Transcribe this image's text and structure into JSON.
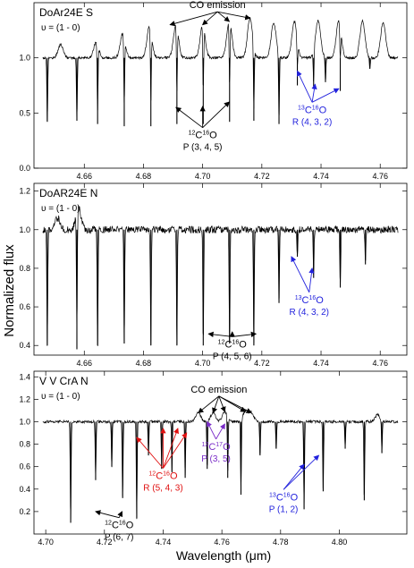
{
  "figure": {
    "ylabel": "Normalized flux",
    "xlabel": "Wavelength (μm)",
    "colors": {
      "blue": "#2222dd",
      "red": "#e01010",
      "purple": "#7a2cc8",
      "line": "#000000"
    }
  },
  "chart_data": [
    {
      "type": "line",
      "title": "DoAr24E S",
      "transition": "υ = (1 - 0)",
      "xlim": [
        4.643,
        4.769
      ],
      "ylim": [
        0.0,
        1.5
      ],
      "xticks": [
        4.66,
        4.68,
        4.7,
        4.72,
        4.74,
        4.76
      ],
      "yticks": [
        0.0,
        0.5,
        1.0
      ],
      "continuum": 1.0,
      "emission_peaks": [
        {
          "x": 4.652,
          "h": 0.12
        },
        {
          "x": 4.664,
          "h": 0.14
        },
        {
          "x": 4.673,
          "h": 0.22
        },
        {
          "x": 4.682,
          "h": 0.28
        },
        {
          "x": 4.691,
          "h": 0.3
        },
        {
          "x": 4.7,
          "h": 0.3
        },
        {
          "x": 4.709,
          "h": 0.34
        },
        {
          "x": 4.716,
          "h": 0.36
        },
        {
          "x": 4.724,
          "h": 0.32
        },
        {
          "x": 4.731,
          "h": 0.33
        },
        {
          "x": 4.739,
          "h": 0.34
        },
        {
          "x": 4.746,
          "h": 0.34
        },
        {
          "x": 4.754,
          "h": 0.33
        },
        {
          "x": 4.761,
          "h": 0.32
        }
      ],
      "absorption_lines": [
        {
          "x": 4.6475,
          "y": 0.42
        },
        {
          "x": 4.6575,
          "y": 0.43
        },
        {
          "x": 4.6645,
          "y": 0.4
        },
        {
          "x": 4.6735,
          "y": 0.38
        },
        {
          "x": 4.6825,
          "y": 0.38
        },
        {
          "x": 4.6913,
          "y": 0.4
        },
        {
          "x": 4.7002,
          "y": 0.4
        },
        {
          "x": 4.7091,
          "y": 0.42
        },
        {
          "x": 4.7173,
          "y": 0.43
        },
        {
          "x": 4.7258,
          "y": 0.4
        },
        {
          "x": 4.732,
          "y": 0.75
        },
        {
          "x": 4.7375,
          "y": 0.72
        },
        {
          "x": 4.7415,
          "y": 0.78
        },
        {
          "x": 4.7465,
          "y": 0.7
        },
        {
          "x": 4.7565,
          "y": 0.9
        }
      ],
      "annotations": [
        {
          "id": "co-emission",
          "text": "CO emission",
          "color": "black",
          "x": 4.705,
          "y": 1.45,
          "arrows": [
            [
              4.689,
              1.3
            ],
            [
              4.7,
              1.3
            ],
            [
              4.709,
              1.33
            ],
            [
              4.716,
              1.36
            ]
          ]
        },
        {
          "id": "12c16o",
          "iso": [
            "12",
            "C",
            "16",
            "O"
          ],
          "sub": "P (3, 4, 5)",
          "color": "black",
          "x": 4.7,
          "y": 0.27,
          "arrows": [
            [
              4.691,
              0.55
            ],
            [
              4.7,
              0.56
            ],
            [
              4.709,
              0.6
            ]
          ]
        },
        {
          "id": "13c16o",
          "iso": [
            "13",
            "C",
            "16",
            "O"
          ],
          "sub": "R (4, 3, 2)",
          "color": "blue",
          "x": 4.737,
          "y": 0.5,
          "arrows": [
            [
              4.732,
              0.88
            ],
            [
              4.738,
              0.76
            ],
            [
              4.746,
              0.72
            ]
          ]
        }
      ]
    },
    {
      "type": "line",
      "title": "DoAR24E N",
      "transition": "υ = (1 - 0)",
      "xlim": [
        4.643,
        4.769
      ],
      "ylim": [
        0.35,
        1.24
      ],
      "xticks": [
        4.66,
        4.68,
        4.7,
        4.72,
        4.74,
        4.76
      ],
      "yticks": [
        0.4,
        0.6,
        0.8,
        1.0,
        1.2
      ],
      "continuum": 1.0,
      "emission_peaks": [
        {
          "x": 4.658,
          "h": 0.12
        },
        {
          "x": 4.651,
          "h": 0.06
        }
      ],
      "absorption_lines": [
        {
          "x": 4.6475,
          "y": 0.4
        },
        {
          "x": 4.6575,
          "y": 0.38
        },
        {
          "x": 4.6645,
          "y": 0.4
        },
        {
          "x": 4.6735,
          "y": 0.41
        },
        {
          "x": 4.6825,
          "y": 0.4
        },
        {
          "x": 4.6913,
          "y": 0.4
        },
        {
          "x": 4.7002,
          "y": 0.4
        },
        {
          "x": 4.7091,
          "y": 0.41
        },
        {
          "x": 4.7173,
          "y": 0.4
        },
        {
          "x": 4.7258,
          "y": 0.62
        },
        {
          "x": 4.732,
          "y": 0.86
        },
        {
          "x": 4.7375,
          "y": 0.75
        },
        {
          "x": 4.7465,
          "y": 0.7
        },
        {
          "x": 4.755,
          "y": 0.82
        }
      ],
      "annotations": [
        {
          "id": "13c16o-n",
          "iso": [
            "13",
            "C",
            "16",
            "O"
          ],
          "sub": "R (4, 3, 2)",
          "color": "blue",
          "x": 4.736,
          "y": 0.62,
          "arrows": [
            [
              4.73,
              0.86
            ],
            [
              4.737,
              0.8
            ]
          ]
        },
        {
          "id": "12c16o-n",
          "iso": [
            "12",
            "C",
            "16",
            "O"
          ],
          "sub": "P (4, 5, 6)",
          "color": "black",
          "x": 4.71,
          "y": 0.39,
          "arrows": [
            [
              4.702,
              0.46
            ],
            [
              4.71,
              0.47
            ],
            [
              4.718,
              0.46
            ]
          ]
        }
      ]
    },
    {
      "type": "line",
      "title": "V V CrA N",
      "transition": "υ = (1 - 0)",
      "xlim": [
        4.696,
        4.823
      ],
      "ylim": [
        0.0,
        1.45
      ],
      "xticks": [
        4.7,
        4.72,
        4.74,
        4.76,
        4.78,
        4.8
      ],
      "yticks": [
        0.2,
        0.4,
        0.6,
        0.8,
        1.0,
        1.2,
        1.4
      ],
      "continuum": 1.0,
      "emission_peaks": [
        {
          "x": 4.752,
          "h": 0.08
        },
        {
          "x": 4.757,
          "h": 0.08
        },
        {
          "x": 4.761,
          "h": 0.09
        },
        {
          "x": 4.768,
          "h": 0.09
        },
        {
          "x": 4.77,
          "h": 0.08
        },
        {
          "x": 4.813,
          "h": 0.06
        }
      ],
      "absorption_lines": [
        {
          "x": 4.7085,
          "y": 0.1
        },
        {
          "x": 4.717,
          "y": 0.48
        },
        {
          "x": 4.7225,
          "y": 0.6
        },
        {
          "x": 4.7262,
          "y": 0.32
        },
        {
          "x": 4.731,
          "y": 0.14
        },
        {
          "x": 4.735,
          "y": 0.7
        },
        {
          "x": 4.7395,
          "y": 0.58
        },
        {
          "x": 4.743,
          "y": 0.55
        },
        {
          "x": 4.7475,
          "y": 0.5
        },
        {
          "x": 4.755,
          "y": 0.58
        },
        {
          "x": 4.762,
          "y": 0.5
        },
        {
          "x": 4.7665,
          "y": 0.35
        },
        {
          "x": 4.773,
          "y": 0.7
        },
        {
          "x": 4.7785,
          "y": 0.76
        },
        {
          "x": 4.788,
          "y": 0.22
        },
        {
          "x": 4.7945,
          "y": 0.38
        },
        {
          "x": 4.802,
          "y": 0.76
        },
        {
          "x": 4.8085,
          "y": 0.3
        },
        {
          "x": 4.8145,
          "y": 0.72
        }
      ],
      "annotations": [
        {
          "id": "co-emission-v",
          "text": "CO emission",
          "color": "black",
          "x": 4.759,
          "y": 1.26,
          "arrows": [
            [
              4.752,
              1.08
            ],
            [
              4.757,
              1.08
            ],
            [
              4.761,
              1.09
            ],
            [
              4.768,
              1.09
            ],
            [
              4.77,
              1.08
            ]
          ]
        },
        {
          "id": "12c16o-red",
          "iso": [
            "12",
            "C",
            "16",
            "O"
          ],
          "sub": "R (5, 4, 3)",
          "color": "red",
          "x": 4.74,
          "y": 0.49,
          "arrows": [
            [
              4.731,
              0.86
            ],
            [
              4.74,
              0.94
            ],
            [
              4.745,
              0.94
            ],
            [
              4.748,
              0.9
            ]
          ]
        },
        {
          "id": "12c17o",
          "iso": [
            "12",
            "C",
            "17",
            "O"
          ],
          "sub": "P (3, 5)",
          "color": "purple",
          "x": 4.758,
          "y": 0.75,
          "arrows": [
            [
              4.755,
              1.0
            ],
            [
              4.761,
              0.98
            ]
          ]
        },
        {
          "id": "13c16o-v",
          "iso": [
            "13",
            "C",
            "16",
            "O"
          ],
          "sub": "P (1, 2)",
          "color": "blue",
          "x": 4.781,
          "y": 0.3,
          "arrows": [
            [
              4.788,
              0.62
            ],
            [
              4.793,
              0.7
            ]
          ]
        },
        {
          "id": "12c16o-v",
          "iso": [
            "12",
            "C",
            "16",
            "O"
          ],
          "sub": "P (6, 7)",
          "color": "black",
          "x": 4.725,
          "y": 0.05,
          "arrows": [
            [
              4.717,
              0.2
            ],
            [
              4.726,
              0.2
            ]
          ]
        }
      ]
    }
  ]
}
